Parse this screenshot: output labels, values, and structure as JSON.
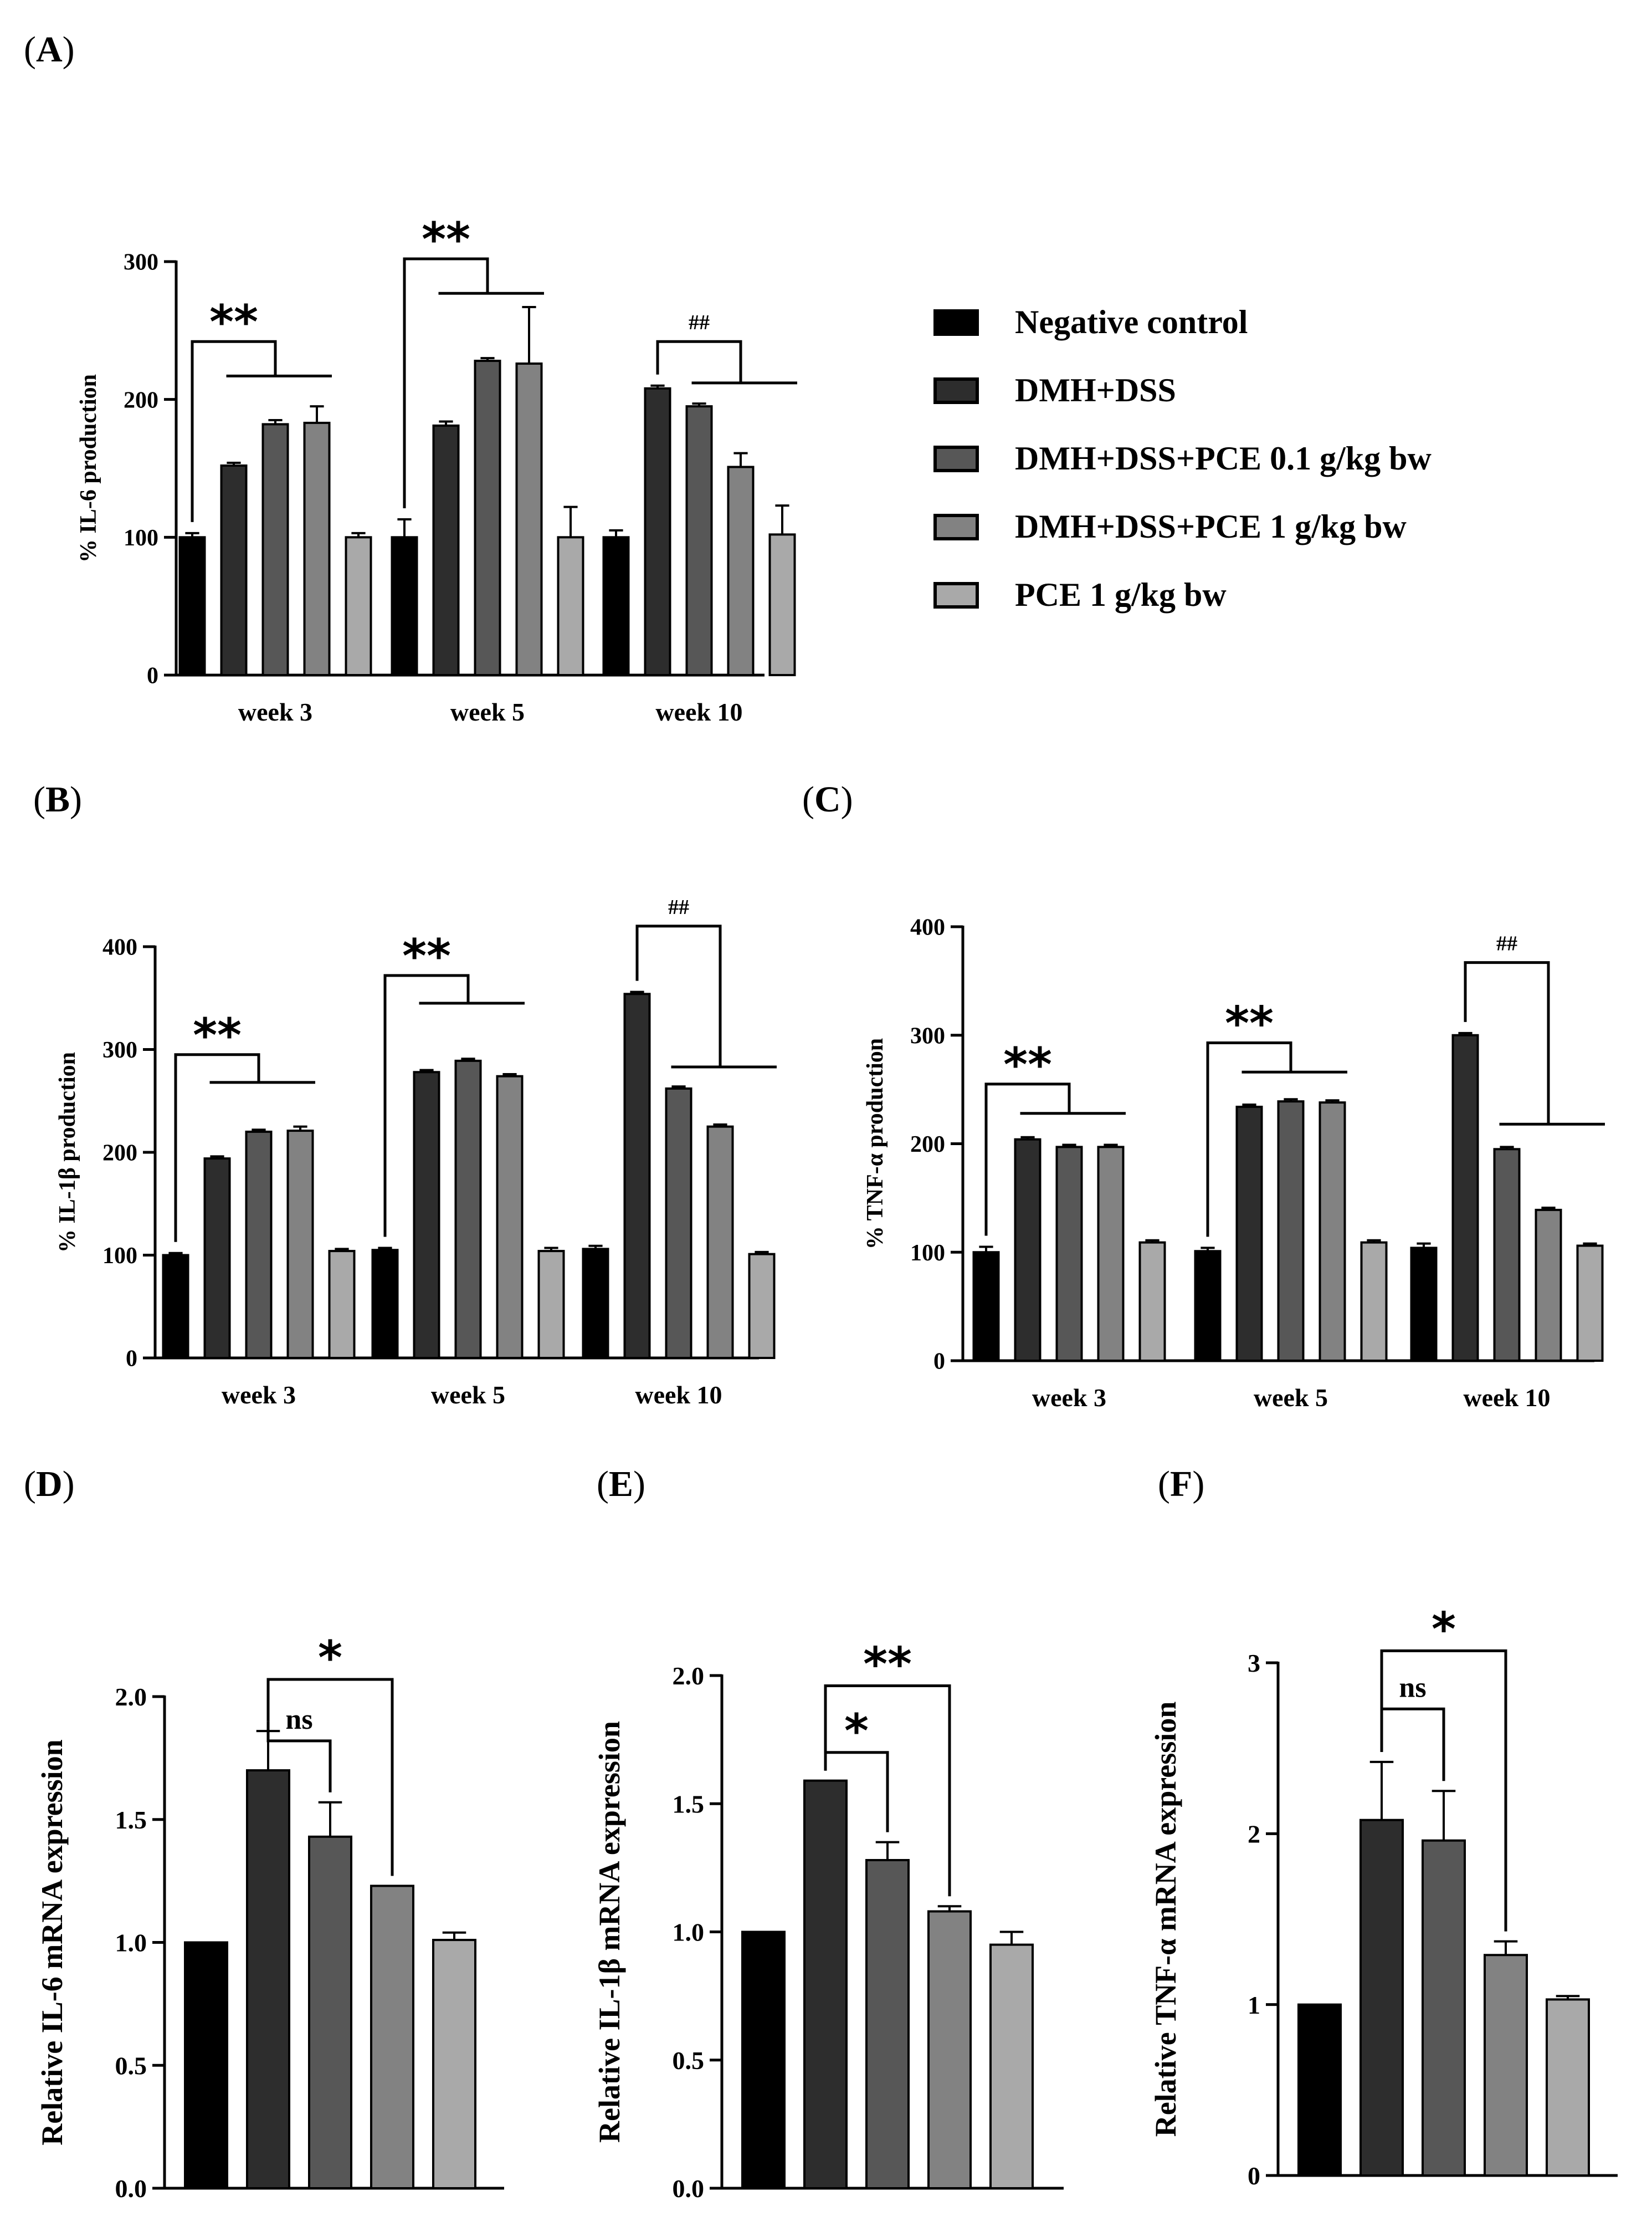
{
  "figure": {
    "panel_labels": [
      {
        "id": "A",
        "text": "A"
      },
      {
        "id": "B",
        "text": "B"
      },
      {
        "id": "C",
        "text": "C"
      },
      {
        "id": "D",
        "text": "D"
      },
      {
        "id": "E",
        "text": "E"
      },
      {
        "id": "F",
        "text": "F"
      }
    ],
    "legend": [
      {
        "label": "Negative control",
        "color": "#000000"
      },
      {
        "label": "DMH+DSS",
        "color": "#2d2d2d"
      },
      {
        "label": "DMH+DSS+PCE 0.1 g/kg bw",
        "color": "#575757"
      },
      {
        "label": "DMH+DSS+PCE 1 g/kg bw",
        "color": "#828282"
      },
      {
        "label": "PCE 1 g/kg bw",
        "color": "#a9a9a9"
      }
    ]
  },
  "chart_data": [
    {
      "id": "A",
      "type": "bar",
      "title": "",
      "xlabel": "",
      "ylabel": "% IL-6 production",
      "ylim": [
        0,
        300
      ],
      "yticks": [
        "0",
        "100",
        "200",
        "300"
      ],
      "categories": [
        "week 3",
        "week 5",
        "week 10"
      ],
      "series": [
        {
          "name": "Negative control",
          "values": [
            100,
            100,
            100
          ],
          "errors": [
            3,
            13,
            5
          ]
        },
        {
          "name": "DMH+DSS",
          "values": [
            152,
            181,
            208
          ],
          "errors": [
            2,
            3,
            2
          ]
        },
        {
          "name": "DMH+DSS+PCE 0.1 g/kg bw",
          "values": [
            182,
            228,
            195
          ],
          "errors": [
            3,
            2,
            2
          ]
        },
        {
          "name": "DMH+DSS+PCE 1 g/kg bw",
          "values": [
            183,
            226,
            151
          ],
          "errors": [
            12,
            41,
            10
          ]
        },
        {
          "name": "PCE 1 g/kg bw",
          "values": [
            100,
            100,
            102
          ],
          "errors": [
            3,
            22,
            21
          ]
        }
      ],
      "annotations": [
        {
          "text": "**",
          "category": 0,
          "from": 0,
          "to_start": 1,
          "to_end": 3,
          "y_top": 242,
          "y_inner": 217
        },
        {
          "text": "**",
          "category": 1,
          "from": 0,
          "to_start": 1,
          "to_end": 3,
          "y_top": 302,
          "y_inner": 277
        },
        {
          "text": "##",
          "category": 2,
          "from": 1,
          "to_start": 2,
          "to_end": 4,
          "y_top": 242,
          "y_inner": 212
        }
      ]
    },
    {
      "id": "B",
      "type": "bar",
      "title": "",
      "xlabel": "",
      "ylabel": "% IL-1β production",
      "ylim": [
        0,
        400
      ],
      "yticks": [
        "0",
        "100",
        "200",
        "300",
        "400"
      ],
      "categories": [
        "week 3",
        "week 5",
        "week 10"
      ],
      "series": [
        {
          "name": "Negative control",
          "values": [
            100,
            105,
            106
          ],
          "errors": [
            2,
            2,
            3
          ]
        },
        {
          "name": "DMH+DSS",
          "values": [
            194,
            278,
            354
          ],
          "errors": [
            2,
            2,
            2
          ]
        },
        {
          "name": "DMH+DSS+PCE 0.1 g/kg bw",
          "values": [
            220,
            289,
            262
          ],
          "errors": [
            2,
            2,
            2
          ]
        },
        {
          "name": "DMH+DSS+PCE 1 g/kg bw",
          "values": [
            221,
            274,
            225
          ],
          "errors": [
            4,
            2,
            2
          ]
        },
        {
          "name": "PCE 1 g/kg bw",
          "values": [
            104,
            104,
            101
          ],
          "errors": [
            2,
            3,
            2
          ]
        }
      ],
      "annotations": [
        {
          "text": "**",
          "category": 0,
          "from": 0,
          "to_start": 1,
          "to_end": 3,
          "y_top": 295,
          "y_inner": 268
        },
        {
          "text": "**",
          "category": 1,
          "from": 0,
          "to_start": 1,
          "to_end": 3,
          "y_top": 372,
          "y_inner": 345
        },
        {
          "text": "##",
          "category": 2,
          "from": 1,
          "to_start": 2,
          "to_end": 4,
          "y_top": 420,
          "y_inner": 283
        }
      ]
    },
    {
      "id": "C",
      "type": "bar",
      "title": "",
      "xlabel": "",
      "ylabel": "% TNF-α production",
      "ylim": [
        0,
        400
      ],
      "yticks": [
        "0",
        "100",
        "200",
        "300",
        "400"
      ],
      "categories": [
        "week 3",
        "week 5",
        "week 10"
      ],
      "series": [
        {
          "name": "Negative control",
          "values": [
            100,
            101,
            104
          ],
          "errors": [
            5,
            3,
            4
          ]
        },
        {
          "name": "DMH+DSS",
          "values": [
            204,
            234,
            300
          ],
          "errors": [
            2,
            2,
            2
          ]
        },
        {
          "name": "DMH+DSS+PCE 0.1 g/kg bw",
          "values": [
            197,
            239,
            195
          ],
          "errors": [
            2,
            2,
            2
          ]
        },
        {
          "name": "DMH+DSS+PCE 1 g/kg bw",
          "values": [
            197,
            238,
            139
          ],
          "errors": [
            2,
            2,
            2
          ]
        },
        {
          "name": "PCE 1 g/kg bw",
          "values": [
            109,
            109,
            106
          ],
          "errors": [
            2,
            2,
            2
          ]
        }
      ],
      "annotations": [
        {
          "text": "**",
          "category": 0,
          "from": 0,
          "to_start": 1,
          "to_end": 3,
          "y_top": 255,
          "y_inner": 228
        },
        {
          "text": "**",
          "category": 1,
          "from": 0,
          "to_start": 1,
          "to_end": 3,
          "y_top": 293,
          "y_inner": 266
        },
        {
          "text": "##",
          "category": 2,
          "from": 1,
          "to_start": 2,
          "to_end": 4,
          "y_top": 367,
          "y_inner": 218
        }
      ]
    },
    {
      "id": "D",
      "type": "bar",
      "title": "",
      "xlabel": "",
      "ylabel": "Relative IL-6 mRNA expression",
      "ylim": [
        0,
        2.0
      ],
      "yticks": [
        "0.0",
        "0.5",
        "1.0",
        "1.5",
        "2.0"
      ],
      "categories": [
        "Negative control",
        "DMH+DSS",
        "DMH+DSS+PCE 0.1 g/kg bw",
        "DMH+DSS+PCE 1 g/kg bw",
        "PCE 1 g/kg bw"
      ],
      "values": [
        1.0,
        1.7,
        1.43,
        1.23,
        1.01
      ],
      "errors": [
        0,
        0.16,
        0.14,
        0,
        0.03
      ],
      "annotations": [
        {
          "text": "ns",
          "from": 1,
          "to": 2,
          "y": 1.82
        },
        {
          "text": "*",
          "from": 1,
          "to": 3,
          "y": 2.07
        }
      ]
    },
    {
      "id": "E",
      "type": "bar",
      "title": "",
      "xlabel": "",
      "ylabel": "Relative IL-1β mRNA expression",
      "ylim": [
        0,
        2.0
      ],
      "yticks": [
        "0.0",
        "0.5",
        "1.0",
        "1.5",
        "2.0"
      ],
      "categories": [
        "Negative control",
        "DMH+DSS",
        "DMH+DSS+PCE 0.1 g/kg bw",
        "DMH+DSS+PCE 1 g/kg bw",
        "PCE 1 g/kg bw"
      ],
      "values": [
        1.0,
        1.59,
        1.28,
        1.08,
        0.95
      ],
      "errors": [
        0,
        0,
        0.07,
        0.02,
        0.05
      ],
      "annotations": [
        {
          "text": "*",
          "from": 1,
          "to": 2,
          "y": 1.7
        },
        {
          "text": "**",
          "from": 1,
          "to": 3,
          "y": 1.96
        }
      ]
    },
    {
      "id": "F",
      "type": "bar",
      "title": "",
      "xlabel": "",
      "ylabel": "Relative TNF-α mRNA expression",
      "ylim": [
        0,
        3
      ],
      "yticks": [
        "0",
        "1",
        "2",
        "3"
      ],
      "categories": [
        "Negative control",
        "DMH+DSS",
        "DMH+DSS+PCE 0.1 g/kg bw",
        "DMH+DSS+PCE 1 g/kg bw",
        "PCE 1 g/kg bw"
      ],
      "values": [
        1.0,
        2.08,
        1.96,
        1.29,
        1.03
      ],
      "errors": [
        0,
        0.34,
        0.29,
        0.08,
        0.02
      ],
      "annotations": [
        {
          "text": "ns",
          "from": 1,
          "to": 2,
          "y": 2.73
        },
        {
          "text": "*",
          "from": 1,
          "to": 3,
          "y": 3.07
        }
      ]
    }
  ]
}
